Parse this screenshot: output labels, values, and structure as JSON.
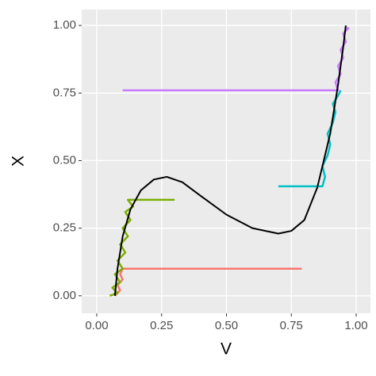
{
  "chart_data": {
    "type": "line",
    "x_label": "V",
    "y_label": "X",
    "xlim": [
      -0.058,
      1.055
    ],
    "ylim": [
      -0.065,
      1.059
    ],
    "xticks": [
      {
        "value": 0,
        "label": "0.00"
      },
      {
        "value": 0.25,
        "label": "0.25"
      },
      {
        "value": 0.5,
        "label": "0.50"
      },
      {
        "value": 0.75,
        "label": "0.75"
      },
      {
        "value": 1,
        "label": "1.00"
      }
    ],
    "yticks": [
      {
        "value": 0,
        "label": "0.00"
      },
      {
        "value": 0.25,
        "label": "0.25"
      },
      {
        "value": 0.5,
        "label": "0.50"
      },
      {
        "value": 0.75,
        "label": "0.75"
      },
      {
        "value": 1,
        "label": "1.00"
      }
    ],
    "grid": true,
    "series": [
      {
        "color": "#f8766d",
        "x": [
          0.79,
          0.1,
          0.09,
          0.1,
          0.08,
          0.09,
          0.07
        ],
        "values": [
          0.1,
          0.1,
          0.08,
          0.06,
          0.04,
          0.02,
          0.0
        ]
      },
      {
        "color": "#7cae00",
        "x": [
          0.3,
          0.12,
          0.14,
          0.11,
          0.13,
          0.1,
          0.12,
          0.09,
          0.11,
          0.08,
          0.1,
          0.07,
          0.09,
          0.06,
          0.08,
          0.05
        ],
        "values": [
          0.355,
          0.355,
          0.33,
          0.31,
          0.28,
          0.25,
          0.22,
          0.19,
          0.16,
          0.13,
          0.1,
          0.08,
          0.05,
          0.03,
          0.01,
          0.0
        ]
      },
      {
        "color": "#00bfc4",
        "x": [
          0.7,
          0.87,
          0.88,
          0.87,
          0.89,
          0.9,
          0.89,
          0.91,
          0.92,
          0.91,
          0.93,
          0.94
        ],
        "values": [
          0.405,
          0.405,
          0.44,
          0.48,
          0.52,
          0.56,
          0.6,
          0.64,
          0.68,
          0.71,
          0.74,
          0.76
        ]
      },
      {
        "color": "#c77cff",
        "x": [
          0.1,
          0.93,
          0.92,
          0.94,
          0.93,
          0.95,
          0.94,
          0.96,
          0.95,
          0.97,
          0.96
        ],
        "values": [
          0.76,
          0.76,
          0.79,
          0.82,
          0.85,
          0.88,
          0.91,
          0.94,
          0.97,
          0.99,
          0.99
        ]
      },
      {
        "color": "#000000",
        "x": [
          0.07,
          0.08,
          0.1,
          0.13,
          0.17,
          0.22,
          0.27,
          0.33,
          0.4,
          0.5,
          0.6,
          0.7,
          0.75,
          0.8,
          0.85,
          0.9,
          0.93,
          0.95,
          0.96
        ],
        "values": [
          0.0,
          0.1,
          0.22,
          0.32,
          0.39,
          0.43,
          0.44,
          0.42,
          0.37,
          0.3,
          0.25,
          0.23,
          0.24,
          0.28,
          0.4,
          0.6,
          0.78,
          0.92,
          1.0
        ]
      }
    ]
  }
}
